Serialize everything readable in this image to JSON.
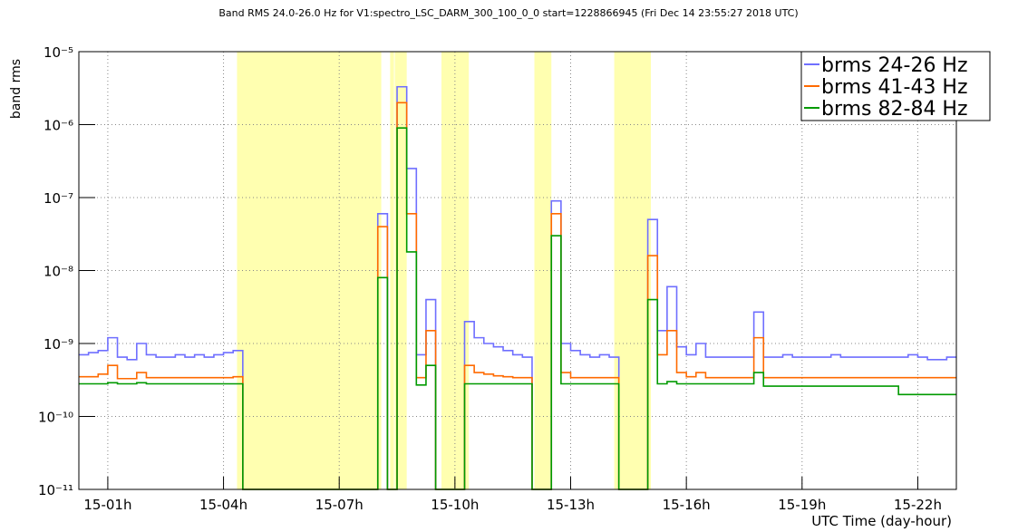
{
  "chart_data": {
    "type": "step",
    "title": "Band RMS 24.0-26.0 Hz for V1:spectro_LSC_DARM_300_100_0_0 start=1228866945 (Fri Dec 14 23:55:27 2018 UTC)",
    "x_label": "UTC Time (day-hour)",
    "y_label": "band rms",
    "log_y": true,
    "grid": true,
    "legend_position": "top-right",
    "xlim": [
      0.25,
      23.0
    ],
    "ylim": [
      1e-11,
      1e-05
    ],
    "xticks": [
      {
        "value": 1,
        "label": "15-01h"
      },
      {
        "value": 4,
        "label": "15-04h"
      },
      {
        "value": 7,
        "label": "15-07h"
      },
      {
        "value": 10,
        "label": "15-10h"
      },
      {
        "value": 13,
        "label": "15-13h"
      },
      {
        "value": 16,
        "label": "15-16h"
      },
      {
        "value": 19,
        "label": "15-19h"
      },
      {
        "value": 22,
        "label": "15-22h"
      }
    ],
    "yticks": [
      {
        "value": 1e-11,
        "label": "10⁻¹¹"
      },
      {
        "value": 1e-10,
        "label": "10⁻¹⁰"
      },
      {
        "value": 1e-09,
        "label": "10⁻⁹"
      },
      {
        "value": 1e-08,
        "label": "10⁻⁸"
      },
      {
        "value": 1e-07,
        "label": "10⁻⁷"
      },
      {
        "value": 1e-06,
        "label": "10⁻⁶"
      },
      {
        "value": 1e-05,
        "label": "10⁻⁵"
      }
    ],
    "highlight_color": "#ffffb0",
    "highlight_ranges": [
      [
        4.35,
        8.09
      ],
      [
        8.32,
        8.42
      ],
      [
        8.44,
        8.75
      ],
      [
        9.65,
        10.36
      ],
      [
        12.06,
        12.5
      ],
      [
        14.13,
        15.08
      ]
    ],
    "x": [
      0.25,
      0.5,
      0.75,
      1,
      1.25,
      1.5,
      1.75,
      2,
      2.25,
      2.5,
      2.75,
      3,
      3.25,
      3.5,
      3.75,
      4,
      4.25,
      4.5,
      4.75,
      5,
      5.25,
      5.5,
      5.75,
      6,
      6.25,
      6.5,
      6.75,
      7,
      7.25,
      7.5,
      7.75,
      8,
      8.25,
      8.5,
      8.75,
      9,
      9.25,
      9.5,
      9.75,
      10,
      10.25,
      10.5,
      10.75,
      11,
      11.25,
      11.5,
      11.75,
      12,
      12.25,
      12.5,
      12.75,
      13,
      13.25,
      13.5,
      13.75,
      14,
      14.25,
      14.5,
      14.75,
      15,
      15.25,
      15.5,
      15.75,
      16,
      16.25,
      16.5,
      16.75,
      17,
      17.25,
      17.5,
      17.75,
      18,
      18.25,
      18.5,
      18.75,
      19,
      19.25,
      19.5,
      19.75,
      20,
      20.25,
      20.5,
      20.75,
      21,
      21.25,
      21.5,
      21.75,
      22,
      22.25,
      22.5,
      22.75
    ],
    "series": [
      {
        "name": "brms 24-26 Hz",
        "color": "#6f6fff",
        "values": [
          7e-10,
          7.5e-10,
          8e-10,
          1.2e-09,
          6.5e-10,
          6e-10,
          1e-09,
          7e-10,
          6.5e-10,
          6.5e-10,
          7e-10,
          6.5e-10,
          7e-10,
          6.5e-10,
          7e-10,
          7.5e-10,
          8e-10,
          1e-11,
          1e-11,
          1e-11,
          1e-11,
          1e-11,
          1e-11,
          1e-11,
          1e-11,
          1e-11,
          1e-11,
          1e-11,
          1e-11,
          1e-11,
          1e-11,
          6e-08,
          1e-11,
          3.3e-06,
          2.5e-07,
          7e-10,
          4e-09,
          1e-11,
          1e-11,
          1e-11,
          2e-09,
          1.2e-09,
          1e-09,
          9e-10,
          8e-10,
          7e-10,
          6.5e-10,
          1e-11,
          1e-11,
          9e-08,
          1e-09,
          8e-10,
          7e-10,
          6.5e-10,
          7e-10,
          6.5e-10,
          1e-11,
          1e-11,
          1e-11,
          5e-08,
          1.5e-09,
          6e-09,
          9e-10,
          7e-10,
          1e-09,
          6.5e-10,
          6.5e-10,
          6.5e-10,
          6.5e-10,
          6.5e-10,
          2.7e-09,
          6.5e-10,
          6.5e-10,
          7e-10,
          6.5e-10,
          6.5e-10,
          6.5e-10,
          6.5e-10,
          7e-10,
          6.5e-10,
          6.5e-10,
          6.5e-10,
          6.5e-10,
          6.5e-10,
          6.5e-10,
          6.5e-10,
          7e-10,
          6.5e-10,
          6e-10,
          6e-10,
          6.5e-10
        ]
      },
      {
        "name": "brms 41-43 Hz",
        "color": "#ff6a00",
        "values": [
          3.5e-10,
          3.5e-10,
          3.8e-10,
          5e-10,
          3.3e-10,
          3.3e-10,
          4e-10,
          3.4e-10,
          3.4e-10,
          3.4e-10,
          3.4e-10,
          3.4e-10,
          3.4e-10,
          3.4e-10,
          3.4e-10,
          3.4e-10,
          3.5e-10,
          1e-11,
          1e-11,
          1e-11,
          1e-11,
          1e-11,
          1e-11,
          1e-11,
          1e-11,
          1e-11,
          1e-11,
          1e-11,
          1e-11,
          1e-11,
          1e-11,
          4e-08,
          1e-11,
          2e-06,
          6e-08,
          3.4e-10,
          1.5e-09,
          1e-11,
          1e-11,
          1e-11,
          5e-10,
          4e-10,
          3.8e-10,
          3.6e-10,
          3.5e-10,
          3.4e-10,
          3.4e-10,
          1e-11,
          1e-11,
          6e-08,
          4e-10,
          3.4e-10,
          3.4e-10,
          3.4e-10,
          3.4e-10,
          3.4e-10,
          1e-11,
          1e-11,
          1e-11,
          1.6e-08,
          7e-10,
          1.5e-09,
          4e-10,
          3.5e-10,
          4e-10,
          3.4e-10,
          3.4e-10,
          3.4e-10,
          3.4e-10,
          3.4e-10,
          1.2e-09,
          3.4e-10,
          3.4e-10,
          3.4e-10,
          3.4e-10,
          3.4e-10,
          3.4e-10,
          3.4e-10,
          3.4e-10,
          3.4e-10,
          3.4e-10,
          3.4e-10,
          3.4e-10,
          3.4e-10,
          3.4e-10,
          3.4e-10,
          3.4e-10,
          3.4e-10,
          3.4e-10,
          3.4e-10,
          3.4e-10
        ]
      },
      {
        "name": "brms 82-84 Hz",
        "color": "#009a00",
        "values": [
          2.8e-10,
          2.8e-10,
          2.8e-10,
          2.9e-10,
          2.8e-10,
          2.8e-10,
          2.9e-10,
          2.8e-10,
          2.8e-10,
          2.8e-10,
          2.8e-10,
          2.8e-10,
          2.8e-10,
          2.8e-10,
          2.8e-10,
          2.8e-10,
          2.8e-10,
          1e-11,
          1e-11,
          1e-11,
          1e-11,
          1e-11,
          1e-11,
          1e-11,
          1e-11,
          1e-11,
          1e-11,
          1e-11,
          1e-11,
          1e-11,
          1e-11,
          8e-09,
          1e-11,
          9e-07,
          1.8e-08,
          2.7e-10,
          5e-10,
          1e-11,
          1e-11,
          1e-11,
          2.8e-10,
          2.8e-10,
          2.8e-10,
          2.8e-10,
          2.8e-10,
          2.8e-10,
          2.8e-10,
          1e-11,
          1e-11,
          3e-08,
          2.8e-10,
          2.8e-10,
          2.8e-10,
          2.8e-10,
          2.8e-10,
          2.8e-10,
          1e-11,
          1e-11,
          1e-11,
          4e-09,
          2.8e-10,
          3e-10,
          2.8e-10,
          2.8e-10,
          2.8e-10,
          2.8e-10,
          2.8e-10,
          2.8e-10,
          2.8e-10,
          2.8e-10,
          4e-10,
          2.6e-10,
          2.6e-10,
          2.6e-10,
          2.6e-10,
          2.6e-10,
          2.6e-10,
          2.6e-10,
          2.6e-10,
          2.6e-10,
          2.6e-10,
          2.6e-10,
          2.6e-10,
          2.6e-10,
          2.6e-10,
          2e-10,
          2e-10,
          2e-10,
          2e-10,
          2e-10,
          2e-10
        ]
      }
    ]
  }
}
